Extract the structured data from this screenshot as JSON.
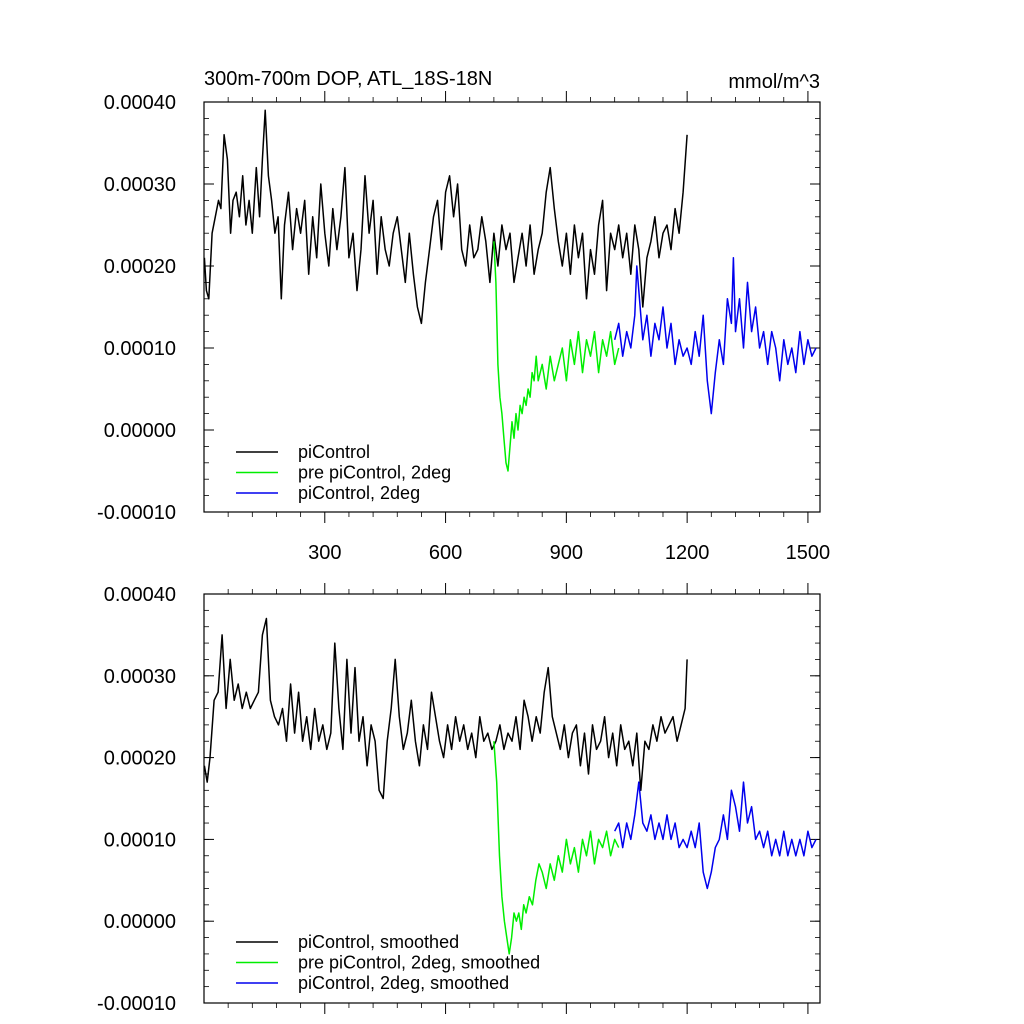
{
  "chart_data": [
    {
      "type": "line",
      "title": "300m-700m DOP, ATL_18S-18N",
      "units": "mmol/m^3",
      "xlim": [
        0,
        1530
      ],
      "ylim": [
        -0.0001,
        0.0004
      ],
      "xticks": [
        300,
        600,
        900,
        1200,
        1500
      ],
      "xtick_labels": [
        "300",
        "600",
        "900",
        "1200",
        "1500"
      ],
      "yticks": [
        -0.0001,
        0,
        0.0001,
        0.0002,
        0.0003,
        0.0004
      ],
      "ytick_labels": [
        "-0.00010",
        "0.00000",
        "0.00010",
        "0.00020",
        "0.00030",
        "0.00040"
      ],
      "legend_location": "bottom-left",
      "series": [
        {
          "name": "piControl",
          "color": "#000000",
          "x": [
            1,
            6,
            12,
            20,
            28,
            36,
            42,
            50,
            58,
            66,
            72,
            80,
            88,
            96,
            104,
            112,
            120,
            130,
            138,
            145,
            152,
            160,
            168,
            176,
            184,
            192,
            200,
            210,
            220,
            230,
            240,
            250,
            260,
            270,
            280,
            290,
            300,
            310,
            320,
            330,
            340,
            350,
            360,
            370,
            380,
            390,
            400,
            410,
            420,
            430,
            440,
            450,
            460,
            470,
            480,
            490,
            500,
            510,
            520,
            530,
            540,
            550,
            560,
            570,
            580,
            590,
            600,
            610,
            620,
            630,
            640,
            650,
            660,
            670,
            680,
            690,
            700,
            710,
            720,
            730,
            740,
            750,
            760,
            770,
            780,
            790,
            800,
            810,
            820,
            830,
            840,
            850,
            860,
            870,
            880,
            890,
            900,
            910,
            920,
            930,
            940,
            950,
            960,
            970,
            980,
            990,
            1000,
            1010,
            1020,
            1030,
            1040,
            1050,
            1060,
            1070,
            1080,
            1090,
            1100,
            1110,
            1120,
            1130,
            1140,
            1150,
            1160,
            1170,
            1180,
            1190,
            1200
          ],
          "y": [
            0.00021,
            0.00017,
            0.00016,
            0.00024,
            0.00026,
            0.00028,
            0.00027,
            0.00036,
            0.00033,
            0.00024,
            0.00028,
            0.00029,
            0.00026,
            0.00031,
            0.00025,
            0.00028,
            0.00024,
            0.00032,
            0.00026,
            0.00033,
            0.00039,
            0.00031,
            0.00028,
            0.00024,
            0.00026,
            0.00016,
            0.00025,
            0.00029,
            0.00022,
            0.00027,
            0.00024,
            0.00028,
            0.00019,
            0.00026,
            0.00021,
            0.0003,
            0.00024,
            0.0002,
            0.00027,
            0.00022,
            0.00026,
            0.00032,
            0.00021,
            0.00024,
            0.00017,
            0.00022,
            0.00031,
            0.00024,
            0.00028,
            0.00019,
            0.00026,
            0.00022,
            0.0002,
            0.00024,
            0.00026,
            0.00022,
            0.00018,
            0.00024,
            0.00019,
            0.00015,
            0.00013,
            0.00018,
            0.00022,
            0.00026,
            0.00028,
            0.00022,
            0.00029,
            0.00031,
            0.00026,
            0.0003,
            0.00022,
            0.0002,
            0.00025,
            0.00021,
            0.00022,
            0.00026,
            0.00023,
            0.00018,
            0.00024,
            0.0002,
            0.00025,
            0.00022,
            0.00024,
            0.00018,
            0.00021,
            0.00024,
            0.0002,
            0.00025,
            0.00019,
            0.00022,
            0.00024,
            0.00029,
            0.00032,
            0.00027,
            0.00023,
            0.0002,
            0.00024,
            0.00019,
            0.00025,
            0.00021,
            0.00024,
            0.00016,
            0.00022,
            0.00019,
            0.00025,
            0.00028,
            0.00017,
            0.00024,
            0.00022,
            0.00025,
            0.00021,
            0.00024,
            0.00019,
            0.00025,
            0.00022,
            0.00015,
            0.00021,
            0.00023,
            0.00026,
            0.00021,
            0.00024,
            0.00025,
            0.00022,
            0.00027,
            0.00024,
            0.00029,
            0.00036
          ]
        },
        {
          "name": "pre piControl, 2deg",
          "color": "#00ee00",
          "x": [
            720,
            725,
            730,
            735,
            740,
            745,
            750,
            755,
            760,
            765,
            770,
            775,
            780,
            785,
            790,
            795,
            800,
            805,
            810,
            815,
            820,
            825,
            830,
            840,
            850,
            860,
            870,
            880,
            890,
            900,
            910,
            920,
            930,
            940,
            950,
            960,
            970,
            980,
            990,
            1000,
            1010,
            1020,
            1030
          ],
          "y": [
            0.00023,
            0.00018,
            8e-05,
            4e-05,
            2e-05,
            -1e-05,
            -4e-05,
            -5e-05,
            -2e-05,
            1e-05,
            -1e-05,
            2e-05,
            0.0,
            3e-05,
            2e-05,
            4e-05,
            3e-05,
            5e-05,
            4e-05,
            7e-05,
            6e-05,
            9e-05,
            6e-05,
            8e-05,
            5e-05,
            9e-05,
            6e-05,
            8e-05,
            0.0001,
            6e-05,
            0.00011,
            8e-05,
            0.00012,
            7e-05,
            0.00011,
            9e-05,
            0.00012,
            7e-05,
            0.00011,
            9e-05,
            0.00012,
            8e-05,
            0.0001
          ]
        },
        {
          "name": "piControl, 2deg",
          "color": "#0000ee",
          "x": [
            1020,
            1030,
            1040,
            1050,
            1060,
            1070,
            1075,
            1080,
            1090,
            1100,
            1110,
            1120,
            1130,
            1140,
            1150,
            1160,
            1170,
            1180,
            1190,
            1200,
            1210,
            1220,
            1230,
            1240,
            1250,
            1260,
            1270,
            1280,
            1290,
            1300,
            1310,
            1315,
            1320,
            1330,
            1340,
            1350,
            1360,
            1370,
            1380,
            1390,
            1400,
            1410,
            1420,
            1430,
            1440,
            1450,
            1460,
            1470,
            1480,
            1490,
            1500,
            1510,
            1520
          ],
          "y": [
            0.00011,
            0.00013,
            9e-05,
            0.00012,
            0.0001,
            0.00014,
            0.0002,
            0.00017,
            0.00011,
            0.00014,
            9e-05,
            0.00013,
            0.00011,
            0.00015,
            0.0001,
            0.00013,
            8e-05,
            0.00011,
            9e-05,
            0.0001,
            8e-05,
            0.00012,
            9e-05,
            0.00014,
            6e-05,
            2e-05,
            7e-05,
            0.00011,
            8e-05,
            0.00016,
            0.00013,
            0.00021,
            0.00012,
            0.00016,
            0.0001,
            0.00018,
            0.00012,
            0.00015,
            0.0001,
            0.00012,
            8e-05,
            0.00012,
            0.0001,
            6e-05,
            0.00011,
            8e-05,
            0.0001,
            7e-05,
            0.00012,
            8e-05,
            0.00011,
            9e-05,
            0.0001
          ]
        }
      ]
    },
    {
      "type": "line",
      "title": "",
      "units": "",
      "xlim": [
        0,
        1530
      ],
      "ylim": [
        -0.0001,
        0.0004
      ],
      "xticks": [
        300,
        600,
        900,
        1200,
        1500
      ],
      "xtick_labels": [],
      "yticks": [
        -0.0001,
        0,
        0.0001,
        0.0002,
        0.0003,
        0.0004
      ],
      "ytick_labels": [
        "-0.00010",
        "0.00000",
        "0.00010",
        "0.00020",
        "0.00030",
        "0.00040"
      ],
      "legend_location": "bottom-left",
      "series": [
        {
          "name": "piControl, smoothed",
          "color": "#000000",
          "x": [
            1,
            8,
            15,
            25,
            35,
            45,
            55,
            65,
            75,
            85,
            95,
            105,
            115,
            125,
            135,
            145,
            155,
            165,
            175,
            185,
            195,
            205,
            215,
            225,
            235,
            245,
            255,
            265,
            275,
            285,
            295,
            305,
            315,
            325,
            335,
            345,
            355,
            365,
            375,
            385,
            395,
            405,
            415,
            425,
            435,
            445,
            455,
            465,
            475,
            485,
            495,
            505,
            515,
            525,
            535,
            545,
            555,
            565,
            575,
            585,
            595,
            605,
            615,
            625,
            635,
            645,
            655,
            665,
            675,
            685,
            695,
            705,
            715,
            725,
            735,
            745,
            755,
            765,
            775,
            785,
            795,
            805,
            815,
            825,
            835,
            845,
            855,
            865,
            875,
            885,
            895,
            905,
            915,
            925,
            935,
            945,
            955,
            965,
            975,
            985,
            995,
            1005,
            1015,
            1025,
            1035,
            1045,
            1055,
            1065,
            1075,
            1085,
            1095,
            1105,
            1115,
            1125,
            1135,
            1145,
            1155,
            1165,
            1175,
            1185,
            1195,
            1200
          ],
          "y": [
            0.00019,
            0.00017,
            0.0002,
            0.00027,
            0.00028,
            0.00035,
            0.00026,
            0.00032,
            0.00027,
            0.00029,
            0.00026,
            0.00028,
            0.00026,
            0.00027,
            0.00028,
            0.00035,
            0.00037,
            0.00027,
            0.00025,
            0.00024,
            0.00026,
            0.00022,
            0.00029,
            0.00023,
            0.00028,
            0.00022,
            0.00025,
            0.00021,
            0.00026,
            0.00022,
            0.00024,
            0.00021,
            0.00023,
            0.00034,
            0.00026,
            0.00021,
            0.00032,
            0.00023,
            0.00031,
            0.00022,
            0.00025,
            0.00019,
            0.00024,
            0.00022,
            0.00016,
            0.00015,
            0.00022,
            0.00026,
            0.00032,
            0.00025,
            0.00021,
            0.00023,
            0.00027,
            0.00022,
            0.00019,
            0.00024,
            0.00021,
            0.00028,
            0.00025,
            0.00022,
            0.0002,
            0.00024,
            0.00021,
            0.00025,
            0.00022,
            0.00024,
            0.00021,
            0.00023,
            0.0002,
            0.00025,
            0.00022,
            0.00023,
            0.00021,
            0.00022,
            0.00024,
            0.00021,
            0.00023,
            0.00022,
            0.00025,
            0.00021,
            0.00027,
            0.00025,
            0.00022,
            0.00025,
            0.00023,
            0.00028,
            0.00031,
            0.00025,
            0.00023,
            0.00021,
            0.00024,
            0.0002,
            0.00023,
            0.00024,
            0.00019,
            0.00023,
            0.00018,
            0.00024,
            0.00021,
            0.00022,
            0.00025,
            0.0002,
            0.00023,
            0.00019,
            0.00024,
            0.00021,
            0.00022,
            0.00019,
            0.00023,
            0.00016,
            0.00022,
            0.00021,
            0.00024,
            0.00022,
            0.00025,
            0.00023,
            0.00024,
            0.00025,
            0.00022,
            0.00024,
            0.00026,
            0.00032
          ]
        },
        {
          "name": "pre piControl, 2deg, smoothed",
          "color": "#00ee00",
          "x": [
            720,
            727,
            734,
            740,
            746,
            752,
            758,
            764,
            770,
            776,
            782,
            788,
            794,
            800,
            808,
            816,
            824,
            832,
            840,
            850,
            860,
            870,
            880,
            890,
            900,
            910,
            920,
            930,
            940,
            950,
            960,
            970,
            980,
            990,
            1000,
            1010,
            1020,
            1030
          ],
          "y": [
            0.00022,
            0.00017,
            8e-05,
            3e-05,
            0.0,
            -2e-05,
            -4e-05,
            -2e-05,
            1e-05,
            0.0,
            1e-05,
            -1e-05,
            2e-05,
            1e-05,
            3e-05,
            2e-05,
            5e-05,
            7e-05,
            6e-05,
            4e-05,
            7e-05,
            5e-05,
            8e-05,
            6e-05,
            0.0001,
            7e-05,
            9e-05,
            6e-05,
            0.0001,
            8e-05,
            0.00011,
            7e-05,
            0.0001,
            9e-05,
            0.00011,
            8e-05,
            0.0001,
            9e-05
          ]
        },
        {
          "name": "piControl, 2deg, smoothed",
          "color": "#0000ee",
          "x": [
            1020,
            1030,
            1040,
            1050,
            1060,
            1070,
            1080,
            1090,
            1100,
            1110,
            1120,
            1130,
            1140,
            1150,
            1160,
            1170,
            1180,
            1190,
            1200,
            1210,
            1220,
            1230,
            1240,
            1250,
            1260,
            1270,
            1280,
            1290,
            1300,
            1310,
            1320,
            1330,
            1340,
            1350,
            1360,
            1370,
            1380,
            1390,
            1400,
            1410,
            1420,
            1430,
            1440,
            1450,
            1460,
            1470,
            1480,
            1490,
            1500,
            1510,
            1520
          ],
          "y": [
            0.00011,
            0.00012,
            9e-05,
            0.00012,
            0.0001,
            0.00013,
            0.00017,
            0.00012,
            0.00011,
            0.00013,
            0.0001,
            0.00012,
            0.0001,
            0.00013,
            0.0001,
            0.00012,
            9e-05,
            0.0001,
            9e-05,
            0.00011,
            9e-05,
            0.00012,
            6e-05,
            4e-05,
            6e-05,
            9e-05,
            0.0001,
            0.00013,
            0.0001,
            0.00016,
            0.00014,
            0.00011,
            0.00017,
            0.00012,
            0.00014,
            0.0001,
            0.00011,
            9e-05,
            0.00011,
            8e-05,
            0.0001,
            8e-05,
            0.00011,
            8e-05,
            0.0001,
            8e-05,
            0.0001,
            8e-05,
            0.00011,
            9e-05,
            0.0001
          ]
        }
      ]
    }
  ]
}
